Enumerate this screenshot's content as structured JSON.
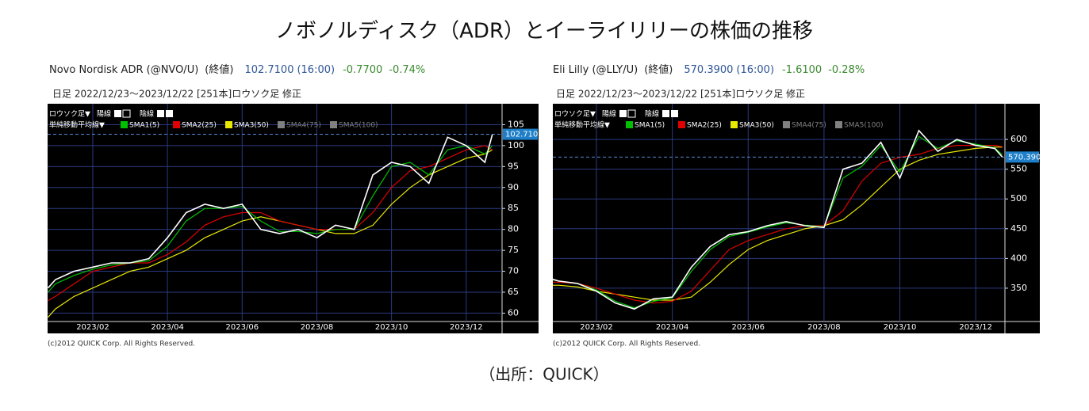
{
  "title": "ノボノルディスク（ADR）とイーライリリーの株価の推移",
  "source": "（出所：QUICK）",
  "chart_data": [
    {
      "type": "line",
      "header": {
        "name": "Novo Nordisk ADR (@NVO/U)",
        "close_label": "(終値)",
        "price": "102.7100",
        "time": "(16:00)",
        "change": "-0.7700",
        "change_pct": "-0.74%"
      },
      "subtitle": "日足  2022/12/23～2023/12/22 [251本]ロウソク足 修正",
      "controls": {
        "candle": "ロウソク足▼",
        "up": "陽線",
        "down": "陰線",
        "ma": "単純移動平均線▼"
      },
      "x": [
        -0.2,
        0,
        0.5,
        1,
        1.5,
        2,
        2.5,
        3,
        3.5,
        4,
        4.5,
        5,
        5.5,
        6,
        6.5,
        7,
        7.5,
        8,
        8.5,
        9,
        9.5,
        10,
        10.5,
        11,
        11.5,
        11.7
      ],
      "series": [
        {
          "name": "終値",
          "color": "#ffffff",
          "values": [
            66,
            68,
            70,
            71,
            72,
            72,
            73,
            78,
            84,
            86,
            85,
            86,
            80,
            79,
            80,
            78,
            81,
            80,
            93,
            96,
            95,
            91,
            102,
            100,
            96,
            102.71
          ]
        },
        {
          "name": "SMA1(5)",
          "color": "#00c000",
          "values": [
            65,
            67,
            69,
            70.5,
            71.5,
            72,
            72.5,
            76,
            82,
            85,
            85,
            85.5,
            82,
            79.5,
            79.5,
            79,
            80,
            80,
            88,
            95,
            96,
            93,
            99,
            100,
            98,
            100
          ]
        },
        {
          "name": "SMA2(25)",
          "color": "#e00000",
          "values": [
            63,
            64,
            67,
            70,
            71,
            72,
            72,
            74,
            77,
            81,
            83,
            84,
            84,
            82,
            81,
            80,
            80,
            80,
            84,
            90,
            94,
            95,
            97,
            99,
            100,
            99
          ]
        },
        {
          "name": "SMA3(50)",
          "color": "#e8e800",
          "values": [
            59,
            61,
            64,
            66,
            68,
            70,
            71,
            73,
            75,
            78,
            80,
            82,
            83,
            82,
            81,
            80,
            79,
            79,
            81,
            86,
            90,
            93,
            95,
            97,
            98,
            99
          ]
        }
      ],
      "legend_inactive": [
        {
          "name": "SMA4(75)",
          "color": "#808080"
        },
        {
          "name": "SMA5(100)",
          "color": "#808080"
        }
      ],
      "xlim": [
        -0.21,
        11.96
      ],
      "ylim": [
        58,
        110
      ],
      "xticks": [
        {
          "value": 1,
          "label": "2023/02"
        },
        {
          "value": 3,
          "label": "2023/04"
        },
        {
          "value": 5,
          "label": "2023/06"
        },
        {
          "value": 7,
          "label": "2023/08"
        },
        {
          "value": 9,
          "label": "2023/10"
        },
        {
          "value": 11,
          "label": "2023/12"
        }
      ],
      "yticks": [
        60,
        65,
        70,
        75,
        80,
        85,
        90,
        95,
        100,
        105
      ],
      "grid": true,
      "copyright": "(c)2012 QUICK Corp. All Rights Reserved."
    },
    {
      "type": "line",
      "header": {
        "name": "Eli Lilly (@LLY/U)",
        "close_label": "(終値)",
        "price": "570.3900",
        "time": "(16:00)",
        "change": "-1.6100",
        "change_pct": "-0.28%"
      },
      "subtitle": "日足  2022/12/23～2023/12/22 [251本]ロウソク足 修正",
      "controls": {
        "candle": "ロウソク足▼",
        "up": "陽線",
        "down": "陰線",
        "ma": "単純移動平均線▼"
      },
      "x": [
        -0.15,
        0,
        0.5,
        1,
        1.5,
        2,
        2.5,
        3,
        3.5,
        4,
        4.5,
        5,
        5.5,
        6,
        6.5,
        7,
        7.5,
        8,
        8.5,
        9,
        9.5,
        10,
        10.5,
        11,
        11.5,
        11.7
      ],
      "series": [
        {
          "name": "終値",
          "color": "#ffffff",
          "values": [
            365,
            362,
            358,
            345,
            325,
            315,
            332,
            335,
            385,
            420,
            440,
            445,
            455,
            462,
            455,
            452,
            550,
            560,
            595,
            535,
            615,
            580,
            600,
            590,
            585,
            570.39
          ]
        },
        {
          "name": "SMA1(5)",
          "color": "#00c000",
          "values": [
            364,
            362,
            358,
            347,
            328,
            317,
            328,
            334,
            378,
            415,
            437,
            444,
            453,
            460,
            456,
            453,
            535,
            555,
            590,
            545,
            605,
            585,
            598,
            592,
            586,
            574
          ]
        },
        {
          "name": "SMA2(25)",
          "color": "#e00000",
          "values": [
            360,
            360,
            358,
            350,
            340,
            330,
            325,
            328,
            345,
            380,
            415,
            430,
            440,
            450,
            455,
            455,
            480,
            530,
            560,
            570,
            575,
            585,
            590,
            590,
            590,
            588
          ]
        },
        {
          "name": "SMA3(50)",
          "color": "#e8e800",
          "values": [
            355,
            355,
            352,
            345,
            340,
            335,
            330,
            330,
            335,
            360,
            390,
            415,
            430,
            440,
            450,
            455,
            465,
            490,
            520,
            550,
            565,
            575,
            580,
            585,
            587,
            587
          ]
        }
      ],
      "legend_inactive": [
        {
          "name": "SMA4(75)",
          "color": "#808080"
        },
        {
          "name": "SMA5(100)",
          "color": "#808080"
        }
      ],
      "xlim": [
        -0.15,
        11.77
      ],
      "ylim": [
        294,
        660
      ],
      "xticks": [
        {
          "value": 1,
          "label": "2023/02"
        },
        {
          "value": 3,
          "label": "2023/04"
        },
        {
          "value": 5,
          "label": "2023/06"
        },
        {
          "value": 7,
          "label": "2023/08"
        },
        {
          "value": 9,
          "label": "2023/10"
        },
        {
          "value": 11,
          "label": "2023/12"
        }
      ],
      "yticks": [
        350,
        400,
        450,
        500,
        550,
        600
      ],
      "grid": true,
      "copyright": "(c)2012 QUICK Corp. All Rights Reserved."
    }
  ]
}
